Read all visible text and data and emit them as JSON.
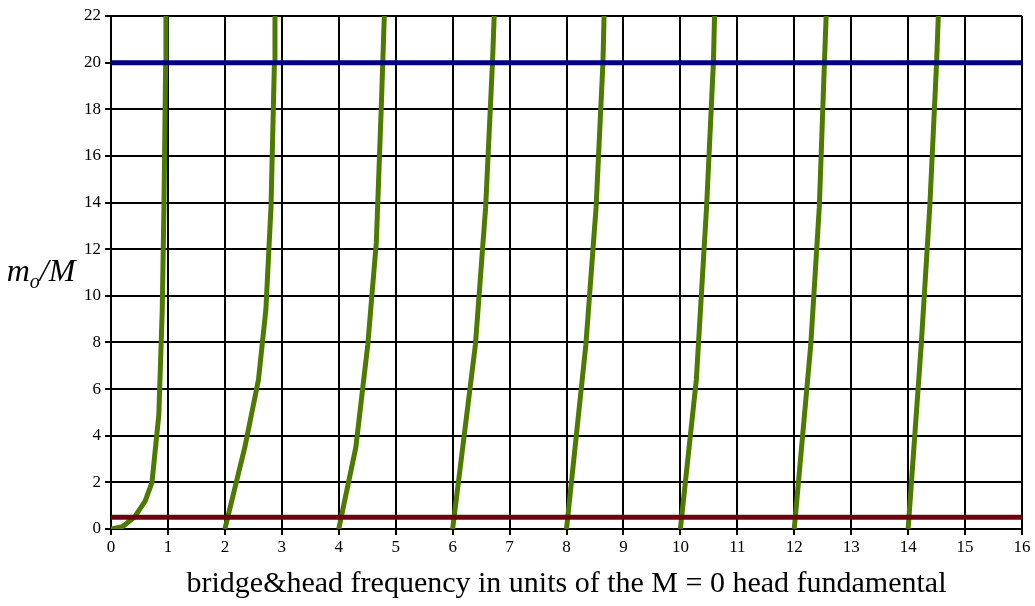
{
  "chart_data": {
    "type": "line",
    "xlabel": "bridge&head frequency in units of the M = 0 head fundamental",
    "ylabel": "m$_{o}$/M",
    "xlim": [
      0,
      16
    ],
    "ylim": [
      0,
      22
    ],
    "xticks": [
      0,
      1,
      2,
      3,
      4,
      5,
      6,
      7,
      8,
      9,
      10,
      11,
      12,
      13,
      14,
      15,
      16
    ],
    "yticks": [
      0,
      2,
      4,
      6,
      8,
      10,
      12,
      14,
      16,
      18,
      20,
      22
    ],
    "grid": true,
    "legend": false,
    "series": [
      {
        "color": "#4d7a00",
        "x": [
          0,
          0.2,
          0.41,
          0.6,
          0.72,
          0.84,
          0.9,
          0.93,
          0.96,
          0.965
        ],
        "values": [
          0,
          0.1,
          0.5,
          1.2,
          2,
          4.9,
          9.4,
          13.8,
          20,
          22
        ]
      },
      {
        "color": "#4d7a00",
        "x": [
          2,
          2.35,
          2.59,
          2.72,
          2.81,
          2.87,
          2.88
        ],
        "values": [
          0,
          3.5,
          6.4,
          9.4,
          13.8,
          20,
          22
        ]
      },
      {
        "color": "#4d7a00",
        "x": [
          4,
          4.3,
          4.51,
          4.66,
          4.75,
          4.8
        ],
        "values": [
          0,
          3.5,
          7.9,
          12.3,
          18.3,
          22
        ]
      },
      {
        "color": "#4d7a00",
        "x": [
          6,
          6.4,
          6.58,
          6.7,
          6.73
        ],
        "values": [
          0,
          7.9,
          13.8,
          20,
          22
        ]
      },
      {
        "color": "#4d7a00",
        "x": [
          8,
          8.34,
          8.52,
          8.64,
          8.66
        ],
        "values": [
          0,
          7.9,
          13.8,
          20,
          22
        ]
      },
      {
        "color": "#4d7a00",
        "x": [
          10,
          10.28,
          10.46,
          10.58,
          10.6
        ],
        "values": [
          0,
          6.4,
          13.8,
          20,
          22
        ]
      },
      {
        "color": "#4d7a00",
        "x": [
          12,
          12.29,
          12.44,
          12.53,
          12.56
        ],
        "values": [
          0,
          7.9,
          13.8,
          20,
          22
        ]
      },
      {
        "color": "#4d7a00",
        "x": [
          14,
          14.23,
          14.38,
          14.5,
          14.53
        ],
        "values": [
          0,
          7.9,
          13.8,
          20,
          22
        ]
      }
    ],
    "ref_lines": [
      {
        "axis": "y",
        "value": 20,
        "color": "#000080"
      },
      {
        "axis": "y",
        "value": 0.5,
        "color": "#700010"
      }
    ]
  }
}
